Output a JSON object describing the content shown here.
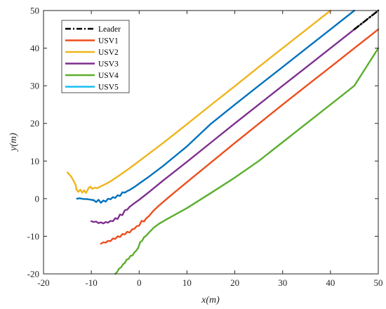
{
  "chart_data": {
    "type": "line",
    "xlabel": "x(m)",
    "ylabel": "y(m)",
    "xlim": [
      -20,
      50
    ],
    "ylim": [
      -20,
      50
    ],
    "xticks": [
      -20,
      -10,
      0,
      10,
      20,
      30,
      40,
      50
    ],
    "yticks": [
      -20,
      -10,
      0,
      10,
      20,
      30,
      40,
      50
    ],
    "grid": false,
    "legend_position": "top-left",
    "series": [
      {
        "name": "Leader",
        "color": "#000000",
        "style": "dash-dot",
        "x": [
          45,
          46,
          47,
          48,
          49,
          50
        ],
        "y": [
          45,
          46,
          47,
          48,
          49,
          50
        ]
      },
      {
        "name": "USV1",
        "color": "#ED4E1C",
        "style": "solid",
        "x": [
          -8,
          -7.5,
          -7,
          -6.5,
          -6,
          -5.5,
          -5,
          -4.5,
          -4,
          -3.5,
          -3,
          -2.5,
          -2,
          -1.5,
          -1,
          -0.5,
          0,
          0.5,
          1,
          1.5,
          2,
          3,
          4,
          5,
          6,
          8,
          10,
          15,
          20,
          25,
          30,
          35,
          40,
          45,
          50
        ],
        "y": [
          -12,
          -11.6,
          -11.7,
          -11.2,
          -11.3,
          -10.6,
          -10.7,
          -10,
          -10.2,
          -9.4,
          -9.5,
          -8.8,
          -9,
          -8.2,
          -8,
          -7.3,
          -7.2,
          -5.9,
          -6.1,
          -5.2,
          -4.7,
          -3.2,
          -2,
          -0.9,
          0.2,
          2.3,
          4.4,
          9.6,
          14.8,
          19.9,
          25,
          30,
          35,
          40,
          45
        ]
      },
      {
        "name": "USV2",
        "color": "#F0B41C",
        "style": "solid",
        "x": [
          -15,
          -14.3,
          -13.8,
          -13.6,
          -13.3,
          -13.1,
          -12.7,
          -12.3,
          -11.9,
          -11.5,
          -11.1,
          -10.6,
          -10.2,
          -9.8,
          -9.3,
          -8.7,
          -8,
          -7,
          -6,
          -4,
          -2,
          0,
          5,
          10,
          15,
          20,
          25,
          30,
          35,
          40
        ],
        "y": [
          7,
          6,
          5,
          4.4,
          3.7,
          2.4,
          1.8,
          2.4,
          1.6,
          2.2,
          1.5,
          2.8,
          3.2,
          2.6,
          2.9,
          2.8,
          3.3,
          3.9,
          4.6,
          6.3,
          8.1,
          10,
          14.8,
          19.8,
          24.9,
          29.9,
          35,
          40,
          45,
          50
        ]
      },
      {
        "name": "USV3",
        "color": "#7E2F8E",
        "style": "solid",
        "x": [
          -10,
          -9.5,
          -9,
          -8.5,
          -8,
          -7.5,
          -7,
          -6.5,
          -6,
          -5.5,
          -5,
          -4.5,
          -4,
          -3.5,
          -3,
          -2.5,
          -2,
          -1,
          0,
          2,
          5,
          10,
          15,
          20,
          25,
          30,
          35,
          40,
          45
        ],
        "y": [
          -6,
          -6.2,
          -6.1,
          -6.5,
          -6.3,
          -6.6,
          -6.2,
          -6.4,
          -5.9,
          -6,
          -5.2,
          -5.4,
          -4.2,
          -4.4,
          -3.1,
          -2.9,
          -2.2,
          -1.2,
          -0.3,
          1.7,
          4.8,
          9.8,
          14.9,
          20,
          25,
          30,
          35,
          40,
          45
        ]
      },
      {
        "name": "USV4",
        "color": "#5BAF2D",
        "style": "solid",
        "x": [
          -5,
          -4.6,
          -4.2,
          -3.8,
          -3.4,
          -3,
          -2.6,
          -2.2,
          -1.8,
          -1.4,
          -1,
          -0.6,
          -0.2,
          0.2,
          0.6,
          1,
          1.5,
          2,
          3,
          4,
          6,
          8,
          10,
          15,
          20,
          25,
          30,
          35,
          40,
          45,
          50
        ],
        "y": [
          -20,
          -19.5,
          -18.6,
          -18.3,
          -17.5,
          -17.1,
          -16.2,
          -16,
          -15.2,
          -15.1,
          -14.3,
          -13.8,
          -13.1,
          -11.6,
          -11.2,
          -10.3,
          -9.8,
          -9.1,
          -7.8,
          -6.8,
          -5.3,
          -3.9,
          -2.5,
          1.5,
          5.6,
          10,
          15,
          20,
          25,
          30,
          40
        ]
      },
      {
        "name": "USV5",
        "color": "#0072BD",
        "style": "solid",
        "legend_color": "#16BFF0",
        "x": [
          -13,
          -12.5,
          -12,
          -11.5,
          -11,
          -10.5,
          -10,
          -9.5,
          -9,
          -8.5,
          -8,
          -7.5,
          -7,
          -6.5,
          -6,
          -5.5,
          -5,
          -4.5,
          -4,
          -3.5,
          -3,
          -2.5,
          -2,
          -1,
          0,
          2,
          5,
          10,
          15,
          20,
          25,
          30,
          35,
          40,
          45
        ],
        "y": [
          0,
          0.1,
          0,
          -0.1,
          -0.1,
          -0.2,
          -0.3,
          -0.4,
          -0.9,
          -0.3,
          -1.1,
          -0.5,
          -0.8,
          0,
          -0.2,
          0.4,
          0.2,
          0.9,
          0.7,
          1.7,
          1.6,
          2,
          2.3,
          3.1,
          4,
          5.8,
          8.7,
          13.9,
          19.9,
          25,
          30,
          35,
          40,
          45,
          50
        ]
      }
    ]
  }
}
